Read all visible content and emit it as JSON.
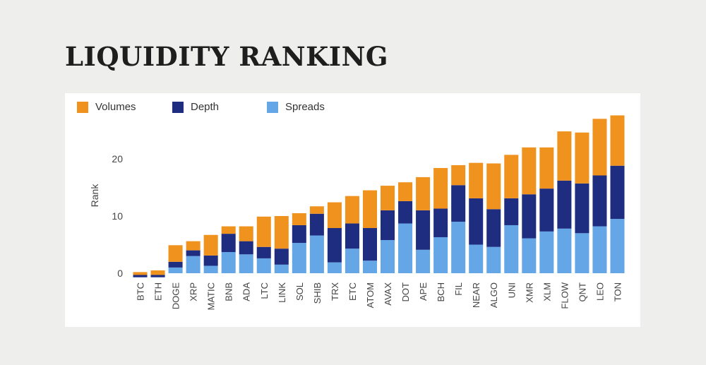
{
  "page": {
    "title": "LIQUIDITY RANKING"
  },
  "colors": {
    "volumes": "#f0921e",
    "depth": "#1f2d80",
    "spreads": "#64a6e6"
  },
  "chart_data": {
    "type": "bar",
    "stacked": true,
    "ylabel": "Rank",
    "xlabel": "",
    "ylim": [
      -1.5,
      27
    ],
    "yticks": [
      0,
      10,
      20
    ],
    "legend_position": "top-left",
    "legend": [
      "Volumes",
      "Depth",
      "Spreads"
    ],
    "categories": [
      "BTC",
      "ETH",
      "DOGE",
      "XRP",
      "MATIC",
      "BNB",
      "ADA",
      "LTC",
      "LINK",
      "SOL",
      "SHIB",
      "TRX",
      "ETC",
      "ATOM",
      "AVAX",
      "DOT",
      "APE",
      "BCH",
      "FIL",
      "NEAR",
      "ALGO",
      "UNI",
      "XMR",
      "XLM",
      "FLOW",
      "QNT",
      "LEO",
      "TON"
    ],
    "series": [
      {
        "name": "Spreads",
        "color_key": "spreads",
        "values": [
          -0.7,
          -0.7,
          1.0,
          3.0,
          1.3,
          3.7,
          3.3,
          2.6,
          1.5,
          5.3,
          6.6,
          1.9,
          4.3,
          2.2,
          5.8,
          8.7,
          4.1,
          6.3,
          9.0,
          5.0,
          4.6,
          8.4,
          6.1,
          7.3,
          7.8,
          7.0,
          8.2,
          9.5
        ]
      },
      {
        "name": "Depth",
        "color_key": "depth",
        "values": [
          0.4,
          0.4,
          1.0,
          1.0,
          1.8,
          3.2,
          2.3,
          2.0,
          2.8,
          3.1,
          3.8,
          6.0,
          4.4,
          5.7,
          5.2,
          3.9,
          6.9,
          5.0,
          6.4,
          8.1,
          6.6,
          4.7,
          7.7,
          7.5,
          8.4,
          8.7,
          8.9,
          9.3
        ]
      },
      {
        "name": "Volumes",
        "color_key": "volumes",
        "values": [
          0.5,
          0.8,
          2.9,
          1.6,
          3.6,
          1.3,
          2.6,
          5.3,
          5.7,
          2.1,
          1.3,
          4.5,
          4.8,
          6.6,
          4.3,
          3.3,
          5.8,
          7.1,
          3.5,
          6.2,
          8.0,
          7.6,
          8.2,
          7.2,
          8.6,
          8.9,
          9.9,
          8.8
        ]
      }
    ]
  }
}
